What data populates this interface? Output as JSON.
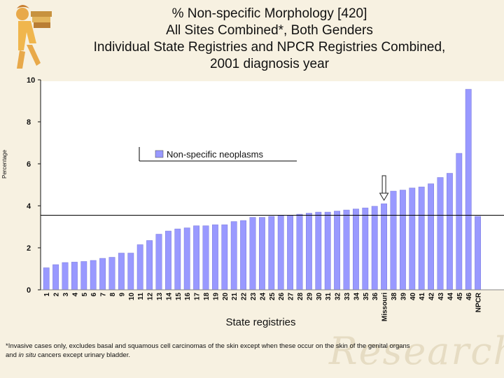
{
  "title_lines": [
    "% Non-specific Morphology [420]",
    "All Sites Combined*, Both Genders",
    "Individual State Registries and NPCR Registries Combined,",
    "2001 diagnosis year"
  ],
  "footnote": {
    "line1": "*Invasive cases only, excludes basal and squamous cell carcinomas of the skin except when these occur on the skin of the genital organs",
    "line2_pre": "and ",
    "line2_italic": "in situ",
    "line2_post": " cancers except urinary bladder."
  },
  "watermark": "Research",
  "colors": {
    "bar": "#9999ff",
    "background": "#f7f1e1",
    "plot_bg": "#ffffff"
  },
  "chart_data": {
    "type": "bar",
    "xlabel": "State registries",
    "ylabel": "Percentage",
    "ylim": [
      0,
      10
    ],
    "yticks": [
      0,
      2,
      4,
      6,
      8,
      10
    ],
    "grid": false,
    "legend": {
      "label": "Non-specific neoplasms",
      "placement": "upper-left"
    },
    "reference_line": 3.55,
    "highlight": {
      "category": "Missouri",
      "marker": "arrow"
    },
    "categories": [
      "1",
      "2",
      "3",
      "4",
      "5",
      "6",
      "7",
      "8",
      "9",
      "10",
      "11",
      "12",
      "13",
      "14",
      "15",
      "16",
      "17",
      "18",
      "19",
      "20",
      "21",
      "22",
      "23",
      "24",
      "25",
      "26",
      "27",
      "28",
      "29",
      "30",
      "31",
      "32",
      "33",
      "34",
      "35",
      "36",
      "Missouri",
      "38",
      "39",
      "40",
      "41",
      "42",
      "43",
      "44",
      "45",
      "46",
      "NPCR"
    ],
    "values": [
      1.05,
      1.2,
      1.3,
      1.32,
      1.35,
      1.4,
      1.5,
      1.55,
      1.75,
      1.75,
      2.15,
      2.35,
      2.65,
      2.8,
      2.9,
      2.95,
      3.05,
      3.05,
      3.1,
      3.1,
      3.25,
      3.3,
      3.45,
      3.45,
      3.5,
      3.55,
      3.55,
      3.6,
      3.65,
      3.7,
      3.7,
      3.75,
      3.8,
      3.85,
      3.9,
      3.98,
      4.1,
      4.7,
      4.75,
      4.85,
      4.9,
      5.05,
      5.35,
      5.55,
      6.5,
      9.55,
      3.5
    ]
  }
}
